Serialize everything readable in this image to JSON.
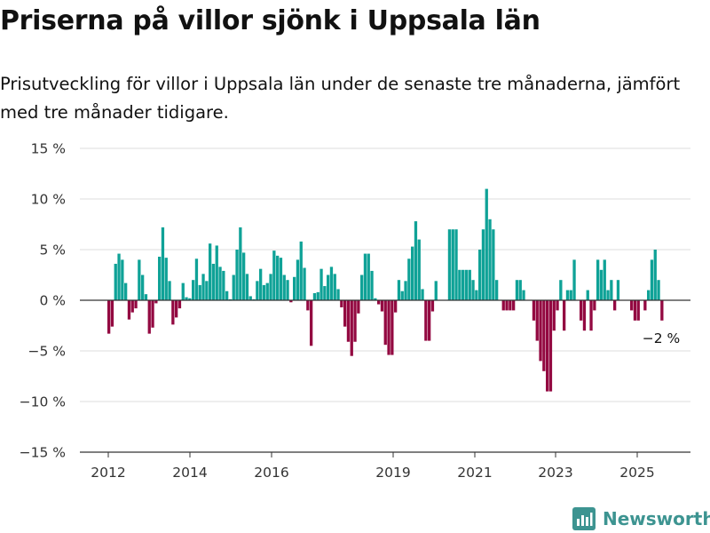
{
  "title": "Priserna på villor sjönk i Uppsala län",
  "subtitle": "Prisutveckling för villor i Uppsala län under de senaste tre månaderna, jämfört med tre månader tidigare.",
  "brand": {
    "name": "Newsworthy",
    "icon": "newsworthy-logo-icon",
    "color": "#3d9491"
  },
  "colors": {
    "positive": "#0fa297",
    "negative": "#930941",
    "grid": "#dddddd"
  },
  "chart_data": {
    "type": "bar",
    "title": "Priserna på villor sjönk i Uppsala län",
    "ylim": [
      -15,
      15
    ],
    "y_ticks": [
      {
        "value": 15,
        "label": "15 %"
      },
      {
        "value": 10,
        "label": "10 %"
      },
      {
        "value": 5,
        "label": "5 %"
      },
      {
        "value": 0,
        "label": "0 %"
      },
      {
        "value": -5,
        "label": "−5 %"
      },
      {
        "value": -10,
        "label": "−10 %"
      },
      {
        "value": -15,
        "label": "−15 %"
      }
    ],
    "x_ticks": [
      "2012",
      "2014",
      "2016",
      "2019",
      "2021",
      "2023",
      "2025"
    ],
    "grid": true,
    "annotation": {
      "text": "−2 %",
      "value": -2
    },
    "series": [
      {
        "values": [
          -3.3,
          -2.6,
          3.6,
          4.6,
          4.0,
          1.7,
          -1.9,
          -1.2,
          -0.8,
          4.0,
          2.5,
          0.6,
          -3.3,
          -2.7,
          -0.3,
          4.3,
          7.2,
          4.2,
          1.9,
          -2.4,
          -1.7,
          -0.8,
          1.7,
          0.3,
          0.2,
          2.0,
          4.1,
          1.5,
          2.6,
          1.9,
          5.6,
          3.6,
          5.4,
          3.3,
          2.9,
          0.9,
          0.1,
          2.5,
          5.0,
          7.2,
          4.7,
          2.6,
          0.4,
          0.1,
          1.9,
          3.1,
          1.5,
          1.7,
          2.6,
          4.9,
          4.4,
          4.2,
          2.5,
          2.0,
          -0.2,
          2.3,
          4.0,
          5.8,
          3.2,
          -1.0,
          -4.5,
          0.7,
          0.8,
          3.1,
          1.4,
          2.5,
          3.3,
          2.6,
          1.1,
          -0.7,
          -2.6,
          -4.1,
          -5.5,
          -4.1,
          -1.3,
          2.5,
          4.6,
          4.6,
          2.9,
          0.2,
          -0.4,
          -1.1,
          -4.4,
          -5.4,
          -5.4,
          -1.2,
          2.0,
          0.9,
          1.9,
          4.1,
          5.3,
          7.8,
          6.0,
          1.1,
          -4.0,
          -4.0,
          -1.1,
          1.9,
          0.0,
          0.0,
          0.0,
          7.0,
          7.0,
          7.0,
          3.0,
          3.0,
          3.0,
          3.0,
          2.0,
          1.0,
          5.0,
          7.0,
          11.0,
          8.0,
          7.0,
          2.0,
          0.0,
          -1.0,
          -1.0,
          -1.0,
          -1.0,
          2.0,
          2.0,
          1.0,
          0.0,
          0.0,
          -2.0,
          -4.0,
          -6.0,
          -7.0,
          -9.0,
          -9.0,
          -3.0,
          -1.0,
          2.0,
          -3.0,
          1.0,
          1.0,
          4.0,
          0.0,
          -2.0,
          -3.0,
          1.0,
          -3.0,
          -1.0,
          4.0,
          3.0,
          4.0,
          1.0,
          2.0,
          -1.0,
          2.0,
          0.0,
          0.0,
          0.0,
          -1.0,
          -2.0,
          -2.0,
          0.0,
          -1.0,
          1.0,
          4.0,
          5.0,
          2.0,
          -2.0
        ]
      }
    ]
  }
}
